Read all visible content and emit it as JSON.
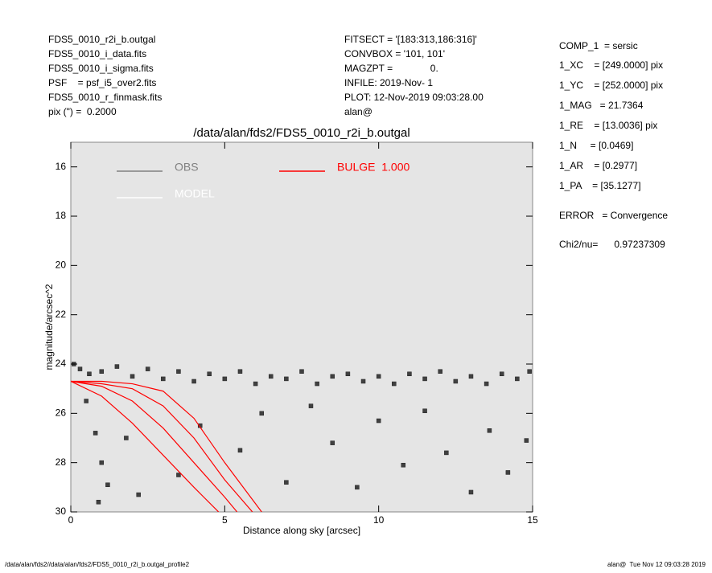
{
  "chart_data": {
    "type": "scatter",
    "header_left": [
      "FDS5_0010_r2i_b.outgal",
      "FDS5_0010_i_data.fits",
      "FDS5_0010_i_sigma.fits",
      "PSF    = psf_i5_over2.fits",
      "FDS5_0010_r_finmask.fits",
      "pix (\") =  0.2000"
    ],
    "header_middle": [
      "FITSECT = '[183:313,186:316]'",
      "CONVBOX = '101, 101'",
      "MAGZPT =              0.",
      "INFILE: 2019-Nov- 1",
      "PLOT: 12-Nov-2019 09:03:28.00",
      "alan@"
    ],
    "parameters": [
      "COMP_1  = sersic",
      "1_XC    = [249.0000] pix",
      "1_YC    = [252.0000] pix",
      "1_MAG   = 21.7364",
      "1_RE    = [13.0036] pix",
      "1_N     = [0.0469]",
      "1_AR    = [0.2977]",
      "1_PA    = [35.1277]",
      "ERROR   = Convergence",
      "Chi2/nu=      0.97237309"
    ],
    "title": "/data/alan/fds2/FDS5_0010_r2i_b.outgal",
    "xlabel": "Distance along sky [arcsec]",
    "ylabel": "magnitude/arcsec^2",
    "footer_left": "/data/alan/fds2//data/alan/fds2/FDS5_0010_r2i_b.outgal_profile2",
    "footer_right": "alan@  Tue Nov 12 09:03:28 2019",
    "xlim": [
      0,
      15
    ],
    "xticks": [
      0,
      5,
      10,
      15
    ],
    "ylim": [
      30,
      15
    ],
    "yticks": [
      16,
      18,
      20,
      22,
      24,
      26,
      28,
      30
    ],
    "legend": [
      {
        "name": "OBS",
        "color": "#808080"
      },
      {
        "name": "MODEL",
        "color": "#ffffff"
      },
      {
        "name": "BULGE  1.000",
        "color": "#ff0000"
      }
    ],
    "obs": {
      "color": "#404040",
      "x": [
        0.1,
        0.3,
        0.6,
        1.0,
        1.5,
        2,
        2.5,
        3,
        3.5,
        4,
        4.5,
        5,
        5.5,
        6,
        6.5,
        7,
        7.5,
        8,
        8.5,
        9,
        9.5,
        10,
        10.5,
        11,
        11.5,
        12,
        12.5,
        13,
        13.5,
        14,
        14.5,
        14.9,
        0.5,
        0.8,
        1.0,
        1.2,
        0.9,
        1.8,
        2.2,
        3.5,
        4.2,
        5.5,
        6.2,
        7,
        7.8,
        8.5,
        9.3,
        10,
        10.8,
        11.5,
        12.2,
        13,
        13.6,
        14.2,
        14.8
      ],
      "y": [
        24.0,
        24.2,
        24.4,
        24.3,
        24.1,
        24.5,
        24.2,
        24.6,
        24.3,
        24.7,
        24.4,
        24.6,
        24.3,
        24.8,
        24.5,
        24.6,
        24.3,
        24.8,
        24.5,
        24.4,
        24.7,
        24.5,
        24.8,
        24.4,
        24.6,
        24.3,
        24.7,
        24.5,
        24.8,
        24.4,
        24.6,
        24.3,
        25.5,
        26.8,
        28.0,
        28.9,
        29.6,
        27.0,
        29.3,
        28.5,
        26.5,
        27.5,
        26.0,
        28.8,
        25.7,
        27.2,
        29.0,
        26.3,
        28.1,
        25.9,
        27.6,
        29.2,
        26.7,
        28.4,
        27.1
      ]
    },
    "bulge": {
      "color": "#ff0000",
      "curves": [
        {
          "x": [
            0,
            1,
            2,
            3,
            4,
            4.8
          ],
          "y": [
            24.7,
            25.3,
            26.4,
            27.7,
            29.0,
            30.0
          ]
        },
        {
          "x": [
            0,
            1,
            2,
            3,
            4,
            5,
            5.4
          ],
          "y": [
            24.7,
            24.9,
            25.5,
            26.6,
            28.0,
            29.4,
            30.0
          ]
        },
        {
          "x": [
            0,
            1,
            2,
            3,
            4,
            5,
            5.9
          ],
          "y": [
            24.7,
            24.8,
            25.0,
            25.7,
            27.0,
            28.7,
            30.0
          ]
        },
        {
          "x": [
            0,
            1,
            2,
            3,
            4,
            5,
            6.2
          ],
          "y": [
            24.7,
            24.7,
            24.8,
            25.1,
            26.2,
            28.0,
            30.0
          ]
        }
      ]
    }
  }
}
